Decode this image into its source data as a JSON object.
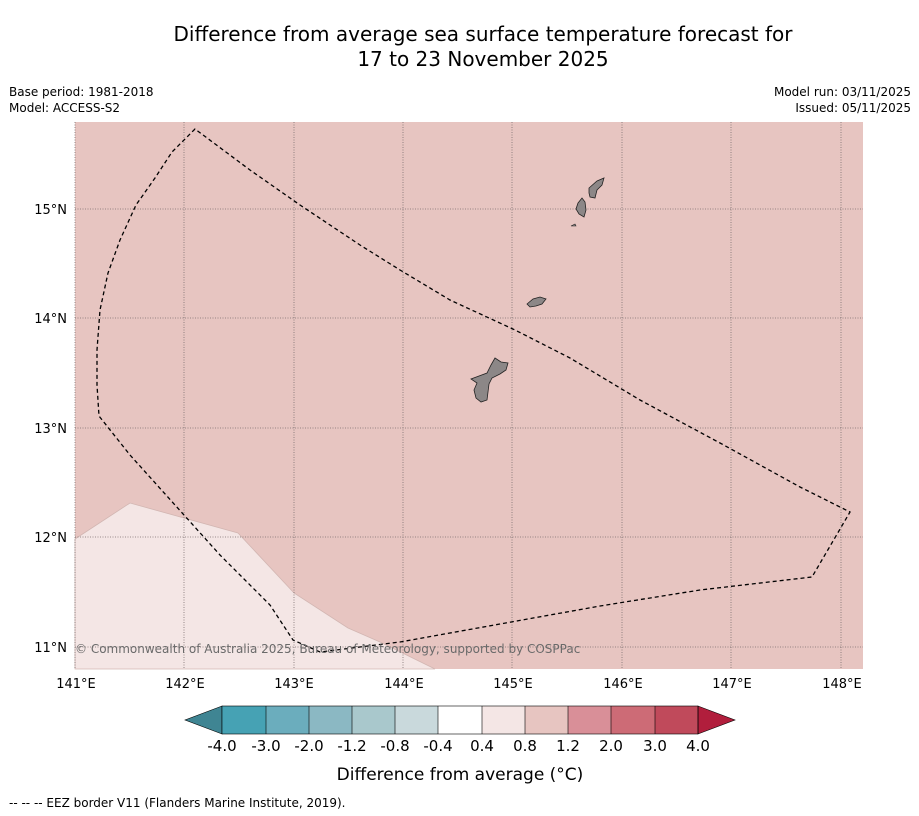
{
  "header": {
    "title_line1": "Difference from average sea surface temperature forecast for",
    "title_line2": "17 to 23 November 2025",
    "base_period": "Base period: 1981-2018",
    "model": "Model: ACCESS-S2",
    "model_run": "Model run: 03/11/2025",
    "issued": "Issued: 05/11/2025"
  },
  "map": {
    "lon_labels": [
      "141°E",
      "142°E",
      "143°E",
      "144°E",
      "145°E",
      "146°E",
      "147°E",
      "148°E"
    ],
    "lat_labels": [
      "15°N",
      "14°N",
      "13°N",
      "12°N",
      "11°N"
    ],
    "lon_range": [
      141.0,
      148.2
    ],
    "lat_range": [
      10.8,
      15.8
    ],
    "background_anomaly_class": "0.8 to 1.2",
    "lower_left_anomaly_class": "0.4 to 0.8",
    "copyright": "© Commonwealth of Australia 2025, Bureau of Meteorology, supported by COSPPac",
    "land_color": "#8c8787",
    "islands": [
      "Guam",
      "Rota",
      "Tinian",
      "Saipan"
    ]
  },
  "colorbar": {
    "ticks": [
      "-4.0",
      "-3.0",
      "-2.0",
      "-1.2",
      "-0.8",
      "-0.4",
      "0.4",
      "0.8",
      "1.2",
      "2.0",
      "3.0",
      "4.0"
    ],
    "colors": [
      "#46a2b4",
      "#6badbd",
      "#8bb8c3",
      "#a9c8cc",
      "#c9d9dc",
      "#ffffff",
      "#f4e6e5",
      "#e7c5c1",
      "#d98f98",
      "#cd6b76",
      "#c04a5b"
    ],
    "low_extend_color": "#3f8593",
    "high_extend_color": "#b11e3c",
    "label": "Difference from average (°C)"
  },
  "footer": {
    "legend_text": "-- -- -- EEZ border V11 (Flanders Marine Institute, 2019)."
  }
}
